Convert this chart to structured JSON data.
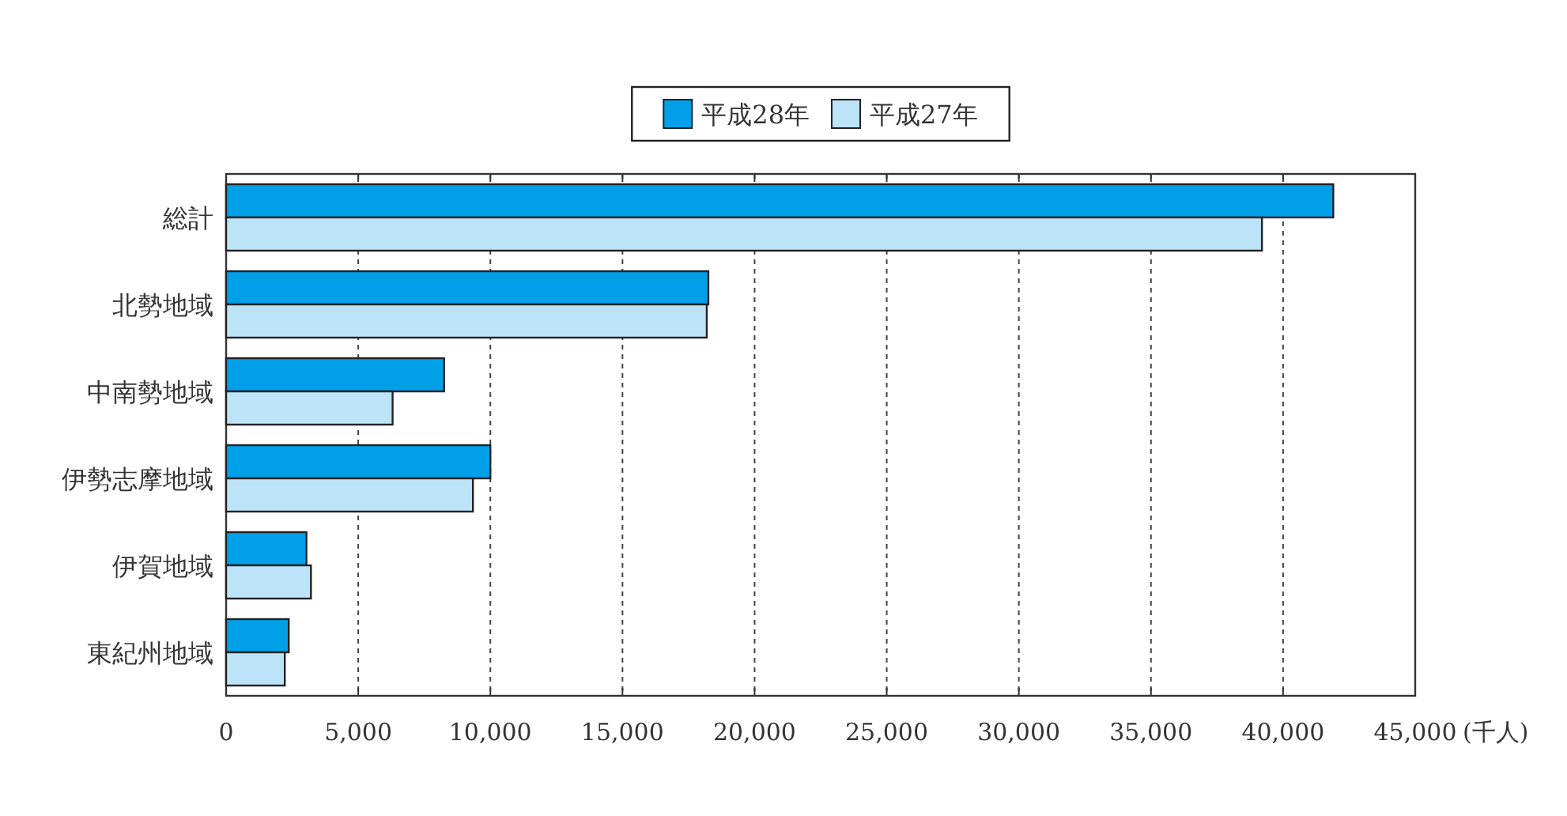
{
  "chart_data": {
    "type": "bar",
    "orientation": "horizontal",
    "xlabel": "(千人)",
    "categories": [
      "総計",
      "北勢地域",
      "中南勢地域",
      "伊勢志摩地域",
      "伊賀地域",
      "東紀州地域"
    ],
    "series": [
      {
        "name": "平成28年",
        "color": "#00a0e9",
        "values": [
          41900,
          18250,
          8250,
          10000,
          3040,
          2370
        ]
      },
      {
        "name": "平成27年",
        "color": "#bde3f8",
        "values": [
          39200,
          18190,
          6300,
          9340,
          3210,
          2220
        ]
      }
    ],
    "xlim": [
      0,
      45000
    ],
    "xticks": [
      {
        "value": 0,
        "label": "0"
      },
      {
        "value": 5000,
        "label": "5,000"
      },
      {
        "value": 10000,
        "label": "10,000"
      },
      {
        "value": 15000,
        "label": "15,000"
      },
      {
        "value": 20000,
        "label": "20,000"
      },
      {
        "value": 25000,
        "label": "25,000"
      },
      {
        "value": 30000,
        "label": "30,000"
      },
      {
        "value": 35000,
        "label": "35,000"
      },
      {
        "value": 40000,
        "label": "40,000"
      },
      {
        "value": 45000,
        "label": "45,000"
      }
    ],
    "grid": "x",
    "legend": "top"
  }
}
